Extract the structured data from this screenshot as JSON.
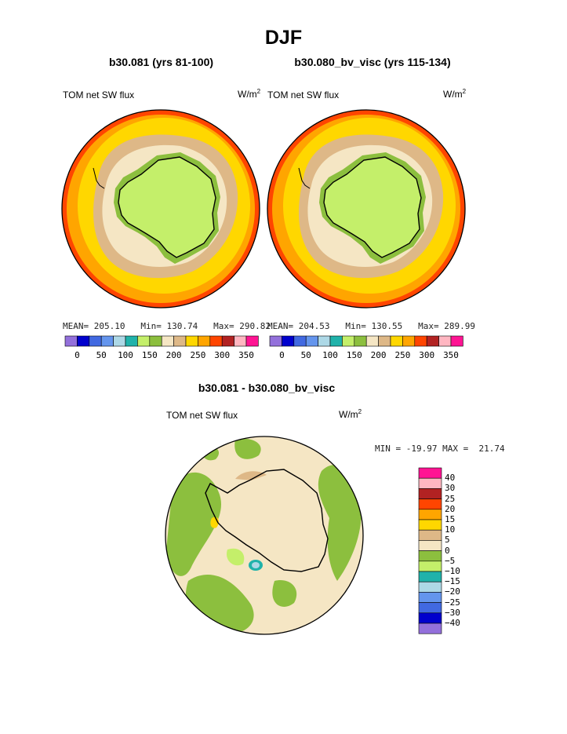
{
  "season_title": "DJF",
  "units_main": "W/m",
  "units_sup": "2",
  "panels": [
    {
      "title": "b30.081 (yrs 81-100)",
      "field_label": "TOM net SW flux",
      "mean": "205.10",
      "min": "130.74",
      "max": "290.82"
    },
    {
      "title": "b30.080_bv_visc (yrs 115-134)",
      "field_label": "TOM net SW flux",
      "mean": "204.53",
      "min": "130.55",
      "max": "289.99"
    }
  ],
  "diff_panel": {
    "title": "b30.081 - b30.080_bv_visc",
    "field_label": "TOM net SW flux",
    "min_label": "MIN =",
    "min": "-19.97",
    "max_label": "MAX =",
    "max": "21.74"
  },
  "labels": {
    "mean": "MEAN=",
    "min": "Min=",
    "max": "Max="
  },
  "chart_data": [
    {
      "type": "heatmap",
      "projection": "south polar stereographic",
      "title": "b30.081 (yrs 81-100)",
      "variable": "TOM net SW flux",
      "units": "W/m2",
      "stats": {
        "mean": 205.1,
        "min": 130.74,
        "max": 290.82
      },
      "colorbar": {
        "ticks": [
          "0",
          "50",
          "100",
          "150",
          "200",
          "250",
          "300",
          "350"
        ],
        "colors": [
          "#9370db",
          "#0000cd",
          "#4169e1",
          "#6495ed",
          "#add8e6",
          "#20b2aa",
          "#c4ef6a",
          "#8cbf3e",
          "#f5e6c4",
          "#deb887",
          "#ffd700",
          "#ffa500",
          "#ff4500",
          "#b22222",
          "#ffb6c1",
          "#ff1493"
        ]
      }
    },
    {
      "type": "heatmap",
      "projection": "south polar stereographic",
      "title": "b30.080_bv_visc (yrs 115-134)",
      "variable": "TOM net SW flux",
      "units": "W/m2",
      "stats": {
        "mean": 204.53,
        "min": 130.55,
        "max": 289.99
      },
      "colorbar": {
        "ticks": [
          "0",
          "50",
          "100",
          "150",
          "200",
          "250",
          "300",
          "350"
        ]
      }
    },
    {
      "type": "heatmap",
      "projection": "south polar stereographic",
      "title": "b30.081 - b30.080_bv_visc",
      "variable": "TOM net SW flux",
      "units": "W/m2",
      "stats": {
        "min": -19.97,
        "max": 21.74
      },
      "colorbar": {
        "ticks": [
          "40",
          "30",
          "25",
          "20",
          "15",
          "10",
          "5",
          "0",
          "−5",
          "−10",
          "−15",
          "−20",
          "−25",
          "−30",
          "−40"
        ],
        "colors": [
          "#ff1493",
          "#ffb6c1",
          "#b22222",
          "#ff4500",
          "#ffa500",
          "#ffd700",
          "#deb887",
          "#f5e6c4",
          "#8cbf3e",
          "#c4ef6a",
          "#20b2aa",
          "#add8e6",
          "#6495ed",
          "#4169e1",
          "#0000cd",
          "#9370db"
        ]
      }
    }
  ]
}
